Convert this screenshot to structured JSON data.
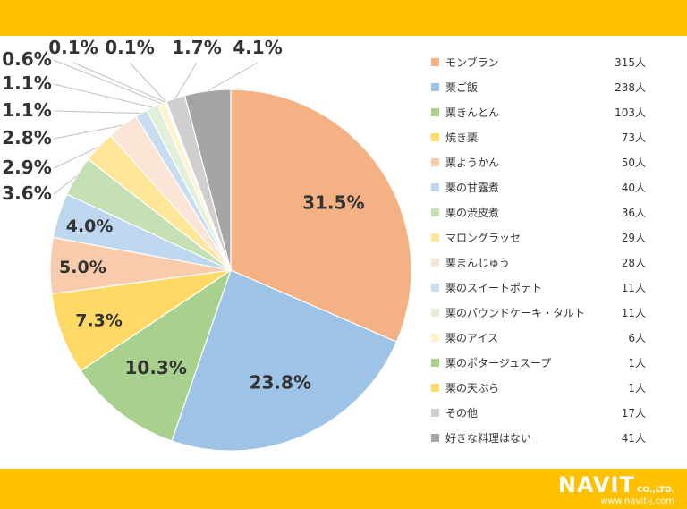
{
  "chart_data": {
    "type": "pie",
    "start_angle_deg": 0,
    "direction": "clockwise",
    "slices": [
      {
        "label": "モンブラン",
        "count": "315人",
        "value": 31.5,
        "pct_label": "31.5%",
        "color": "#f4b183"
      },
      {
        "label": "栗ご飯",
        "count": "238人",
        "value": 23.8,
        "pct_label": "23.8%",
        "color": "#9dc3e6"
      },
      {
        "label": "栗きんとん",
        "count": "103人",
        "value": 10.3,
        "pct_label": "10.3%",
        "color": "#a9d18e"
      },
      {
        "label": "焼き栗",
        "count": "73人",
        "value": 7.3,
        "pct_label": "7.3%",
        "color": "#ffd966"
      },
      {
        "label": "栗ようかん",
        "count": "50人",
        "value": 5.0,
        "pct_label": "5.0%",
        "color": "#f8cbad"
      },
      {
        "label": "栗の甘露煮",
        "count": "40人",
        "value": 4.0,
        "pct_label": "4.0%",
        "color": "#bdd7ee"
      },
      {
        "label": "栗の渋皮煮",
        "count": "36人",
        "value": 3.6,
        "pct_label": "3.6%",
        "color": "#c5e0b4"
      },
      {
        "label": "マロングラッセ",
        "count": "29人",
        "value": 2.9,
        "pct_label": "2.9%",
        "color": "#ffe699"
      },
      {
        "label": "栗まんじゅう",
        "count": "28人",
        "value": 2.8,
        "pct_label": "2.8%",
        "color": "#fbe5d6"
      },
      {
        "label": "栗のスイートポテト",
        "count": "11人",
        "value": 1.1,
        "pct_label": "1.1%",
        "color": "#c9ddf0"
      },
      {
        "label": "栗のパウンドケーキ・タルト",
        "count": "11人",
        "value": 1.1,
        "pct_label": "1.1%",
        "color": "#e2f0d9"
      },
      {
        "label": "栗のアイス",
        "count": "6人",
        "value": 0.6,
        "pct_label": "0.6%",
        "color": "#fff2cc"
      },
      {
        "label": "栗のポタージュスープ",
        "count": "1人",
        "value": 0.1,
        "pct_label": "0.1%",
        "color": "#a9d18e"
      },
      {
        "label": "栗の天ぷら",
        "count": "1人",
        "value": 0.1,
        "pct_label": "0.1%",
        "color": "#ffd966"
      },
      {
        "label": "その他",
        "count": "17人",
        "value": 1.7,
        "pct_label": "1.7%",
        "color": "#d0cece"
      },
      {
        "label": "好きな料理はない",
        "count": "41人",
        "value": 4.1,
        "pct_label": "4.1%",
        "color": "#a5a5a5"
      }
    ],
    "legend_position": "right"
  },
  "logo": {
    "brand": "NAVIT",
    "suffix": "CO.,LTD.",
    "url": "www.navit-j.com"
  },
  "colors": {
    "band": "#ffc000",
    "leader": "#bfbfbf"
  }
}
